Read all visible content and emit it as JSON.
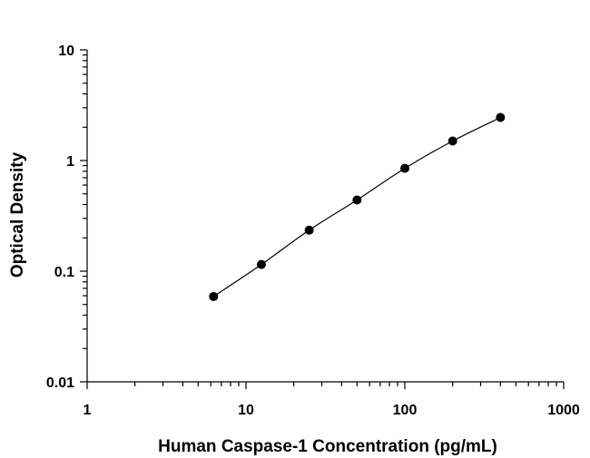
{
  "chart_data": {
    "type": "scatter",
    "xlabel": "Human Caspase-1 Concentration (pg/mL)",
    "ylabel": "Optical Density",
    "xscale": "log",
    "yscale": "log",
    "xlim": [
      1,
      1000
    ],
    "ylim": [
      0.01,
      10
    ],
    "x_ticks": [
      1,
      10,
      100,
      1000
    ],
    "x_tick_labels": [
      "1",
      "10",
      "100",
      "1000"
    ],
    "y_ticks": [
      0.01,
      0.1,
      1,
      10
    ],
    "y_tick_labels": [
      "0.01",
      "0.1",
      "1",
      "10"
    ],
    "grid": false,
    "legend": "none",
    "series": [
      {
        "x": [
          6.25,
          12.5,
          25,
          50,
          100,
          200,
          400
        ],
        "y": [
          0.059,
          0.115,
          0.235,
          0.44,
          0.85,
          1.5,
          2.45
        ]
      }
    ],
    "point_color": "#000000",
    "line_color": "#000000"
  }
}
